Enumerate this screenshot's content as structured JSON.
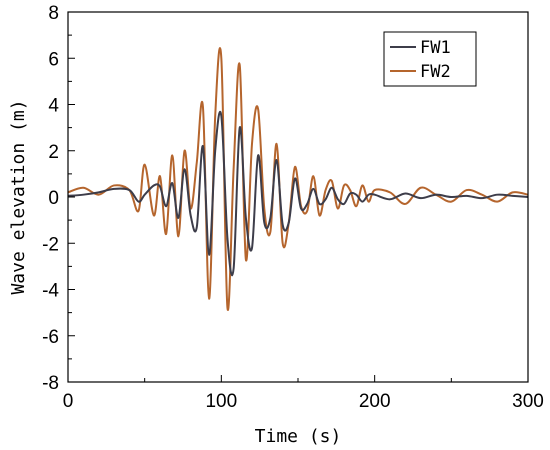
{
  "chart_data": {
    "type": "line",
    "title": "",
    "xlabel": "Time (s)",
    "ylabel": "Wave elevation (m)",
    "xlim": [
      0,
      300
    ],
    "ylim": [
      -8,
      8
    ],
    "xticks": [
      0,
      100,
      200,
      300
    ],
    "yticks": [
      -8,
      -6,
      -4,
      -2,
      0,
      2,
      4,
      6,
      8
    ],
    "grid": false,
    "legend_position": "top-right",
    "series": [
      {
        "name": "FW1",
        "color": "#3d3d4a",
        "x": [
          0,
          10,
          20,
          30,
          40,
          46,
          50,
          56,
          60,
          64,
          68,
          72,
          76,
          80,
          84,
          88,
          92,
          96,
          100,
          104,
          108,
          112,
          116,
          120,
          124,
          128,
          132,
          136,
          140,
          144,
          148,
          152,
          156,
          160,
          164,
          168,
          172,
          176,
          180,
          184,
          188,
          192,
          196,
          200,
          210,
          220,
          230,
          240,
          250,
          260,
          270,
          280,
          290,
          300
        ],
        "y": [
          0.05,
          0.1,
          0.2,
          0.35,
          0.3,
          -0.2,
          0.1,
          0.5,
          0.45,
          -0.4,
          0.6,
          -0.9,
          1.2,
          -0.8,
          -1.3,
          2.2,
          -2.5,
          2.0,
          3.5,
          -1.8,
          -3.1,
          3.0,
          -0.9,
          -2.2,
          1.8,
          -1.1,
          -0.9,
          1.6,
          -1.2,
          -1.1,
          0.8,
          -0.5,
          -0.3,
          0.35,
          -0.3,
          -0.1,
          0.4,
          -0.1,
          -0.3,
          0.15,
          0.1,
          -0.2,
          0.1,
          0.1,
          -0.1,
          0.15,
          -0.05,
          0.1,
          0.0,
          0.05,
          -0.05,
          0.1,
          0.05,
          0.0
        ]
      },
      {
        "name": "FW2",
        "color": "#b5652d",
        "x": [
          0,
          10,
          20,
          30,
          40,
          46,
          50,
          56,
          60,
          64,
          68,
          72,
          76,
          80,
          84,
          88,
          92,
          96,
          100,
          104,
          108,
          112,
          116,
          120,
          124,
          128,
          132,
          136,
          140,
          144,
          148,
          152,
          156,
          160,
          164,
          168,
          172,
          176,
          180,
          184,
          188,
          192,
          196,
          200,
          210,
          220,
          230,
          240,
          250,
          260,
          270,
          280,
          290,
          300
        ],
        "y": [
          0.2,
          0.4,
          0.1,
          0.5,
          0.3,
          -0.6,
          1.4,
          -0.8,
          0.9,
          -1.6,
          1.8,
          -1.7,
          2.0,
          -0.5,
          1.5,
          3.9,
          -4.4,
          3.5,
          6.0,
          -4.8,
          1.2,
          5.7,
          -2.7,
          2.3,
          3.8,
          -0.5,
          -1.5,
          2.3,
          -2.0,
          -1.1,
          1.3,
          -0.4,
          -0.6,
          0.9,
          -0.8,
          0.3,
          0.7,
          -0.5,
          0.5,
          0.3,
          -0.4,
          0.5,
          -0.2,
          0.3,
          0.2,
          -0.3,
          0.4,
          0.1,
          -0.2,
          0.3,
          0.1,
          -0.2,
          0.2,
          0.1
        ]
      }
    ]
  }
}
